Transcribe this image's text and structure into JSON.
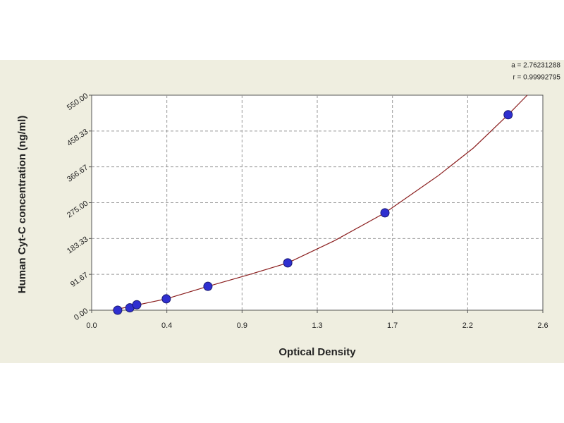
{
  "chart_data": {
    "type": "scatter",
    "x_label": "Optical Density",
    "y_label": "Human Cyt-C concentration (ng/ml)",
    "annotations": [
      "a = 2.76231288",
      "r = 0.99992795"
    ],
    "x": [
      0.15,
      0.22,
      0.26,
      0.43,
      0.67,
      1.13,
      1.69,
      2.4
    ],
    "values": [
      0,
      6,
      14,
      29,
      61,
      121,
      249,
      500
    ],
    "color": "#2f2fd0",
    "curve": {
      "color": "#8b1f1f",
      "x": [
        0.12,
        0.43,
        0.67,
        0.9,
        1.13,
        1.4,
        1.69,
        2.0,
        2.2,
        2.4,
        2.51
      ],
      "values": [
        0,
        29,
        61,
        90,
        121,
        178,
        249,
        345,
        415,
        500,
        550
      ]
    },
    "xlim": [
      0,
      2.6
    ],
    "ylim": [
      0,
      550
    ],
    "xticks": [
      {
        "value": 0,
        "label": "0.0"
      },
      {
        "value": 0.4333,
        "label": "0.4"
      },
      {
        "value": 0.8667,
        "label": "0.9"
      },
      1.3,
      {
        "value": 1.7333,
        "label": "1.7"
      },
      {
        "value": 2.1667,
        "label": "2.2"
      },
      2.6
    ],
    "yticks": [
      {
        "value": 0,
        "label": "0.00"
      },
      91.67,
      183.33,
      {
        "value": 275,
        "label": "275.00"
      },
      366.67,
      458.33,
      {
        "value": 550,
        "label": "550.00"
      }
    ],
    "grid": true
  }
}
